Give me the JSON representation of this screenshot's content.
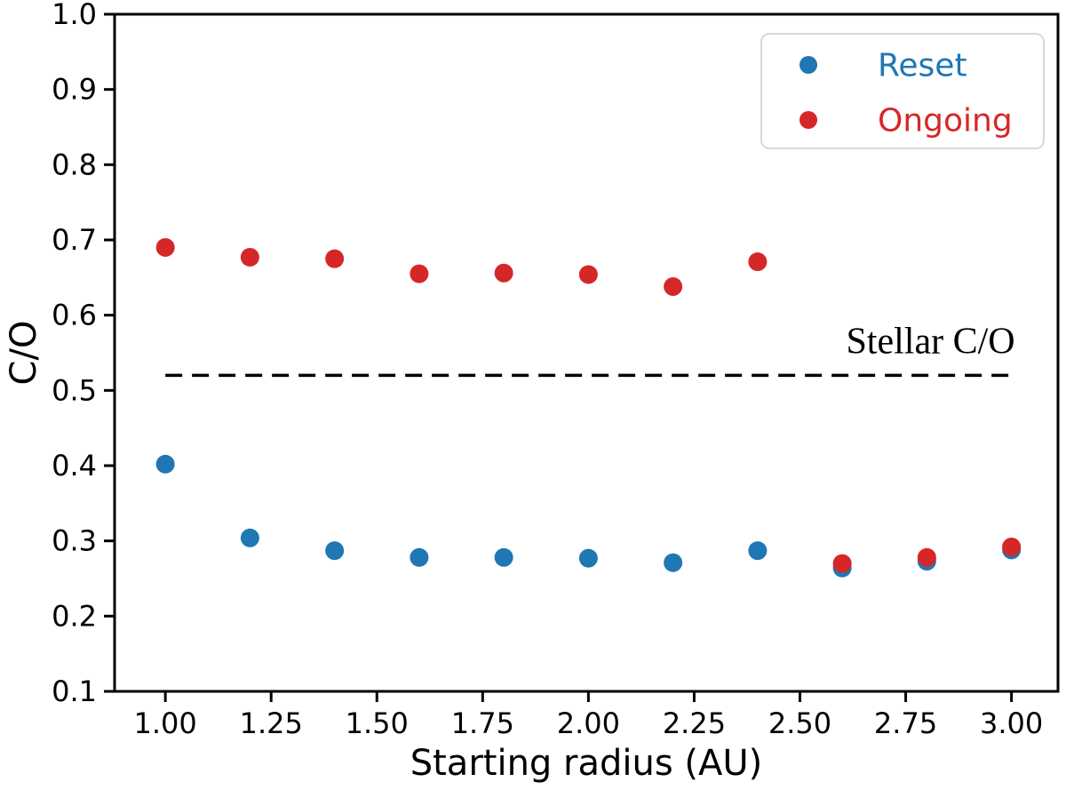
{
  "chart_data": {
    "type": "scatter",
    "title": "",
    "xlabel": "Starting radius (AU)",
    "ylabel": "C/O",
    "xlim": [
      0.88,
      3.11
    ],
    "ylim": [
      0.1,
      1.0
    ],
    "grid": false,
    "xticks": {
      "values": [
        1.0,
        1.25,
        1.5,
        1.75,
        2.0,
        2.25,
        2.5,
        2.75,
        3.0
      ],
      "labels": [
        "1.00",
        "1.25",
        "1.50",
        "1.75",
        "2.00",
        "2.25",
        "2.50",
        "2.75",
        "3.00"
      ]
    },
    "yticks": {
      "values": [
        0.1,
        0.2,
        0.3,
        0.4,
        0.5,
        0.6,
        0.7,
        0.8,
        0.9,
        1.0
      ],
      "labels": [
        "0.1",
        "0.2",
        "0.3",
        "0.4",
        "0.5",
        "0.6",
        "0.7",
        "0.8",
        "0.9",
        "1.0"
      ]
    },
    "x": [
      1.0,
      1.2,
      1.4,
      1.6,
      1.8,
      2.0,
      2.2,
      2.4,
      2.6,
      2.8,
      3.0
    ],
    "series": [
      {
        "name": "Reset",
        "color": "#1f77b4",
        "marker": "circle",
        "values": [
          0.402,
          0.304,
          0.287,
          0.278,
          0.278,
          0.277,
          0.271,
          0.287,
          0.264,
          0.273,
          0.288
        ]
      },
      {
        "name": "Ongoing",
        "color": "#d62728",
        "marker": "circle",
        "values": [
          0.69,
          0.677,
          0.675,
          0.655,
          0.656,
          0.654,
          0.638,
          0.671,
          0.27,
          0.278,
          0.292
        ]
      }
    ],
    "reference_line": {
      "y": 0.52,
      "x_start": 1.0,
      "x_end": 3.0,
      "style": "dashed",
      "color": "#000000",
      "label": "Stellar C/O"
    },
    "legend": {
      "position": "upper-right",
      "entries": [
        {
          "label": "Reset",
          "color": "#1f77b4"
        },
        {
          "label": "Ongoing",
          "color": "#d62728"
        }
      ]
    },
    "axis_color": "#000000",
    "background_color": "#ffffff"
  }
}
